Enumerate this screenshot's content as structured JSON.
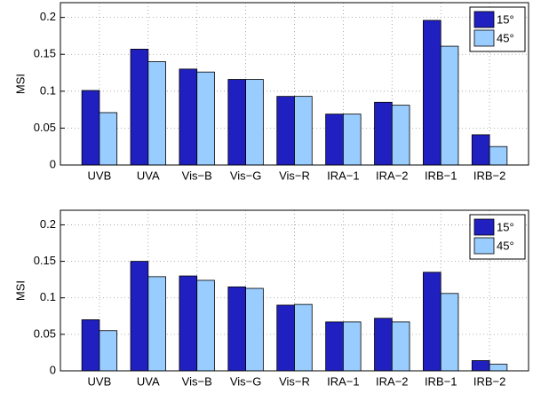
{
  "chart_data": [
    {
      "type": "bar",
      "y_label": "MSI",
      "categories": [
        "UVB",
        "UVA",
        "Vis−B",
        "Vis−G",
        "Vis−R",
        "IRA−1",
        "IRA−2",
        "IRB−1",
        "IRB−2"
      ],
      "series": [
        {
          "name": "15°",
          "color": "#2020c0",
          "values": [
            0.101,
            0.157,
            0.13,
            0.116,
            0.093,
            0.069,
            0.085,
            0.196,
            0.041
          ]
        },
        {
          "name": "45°",
          "color": "#99ccff",
          "values": [
            0.071,
            0.14,
            0.126,
            0.116,
            0.093,
            0.069,
            0.081,
            0.161,
            0.025
          ]
        }
      ],
      "ylim": [
        0,
        0.22
      ],
      "yticks": [
        0,
        0.05,
        0.1,
        0.15,
        0.2
      ],
      "grid": true,
      "legend": "upper right"
    },
    {
      "type": "bar",
      "y_label": "MSI",
      "categories": [
        "UVB",
        "UVA",
        "Vis−B",
        "Vis−G",
        "Vis−R",
        "IRA−1",
        "IRA−2",
        "IRB−1",
        "IRB−2"
      ],
      "series": [
        {
          "name": "15°",
          "color": "#2020c0",
          "values": [
            0.07,
            0.15,
            0.13,
            0.115,
            0.09,
            0.067,
            0.072,
            0.135,
            0.014
          ]
        },
        {
          "name": "45°",
          "color": "#99ccff",
          "values": [
            0.055,
            0.129,
            0.124,
            0.113,
            0.091,
            0.067,
            0.067,
            0.106,
            0.009
          ]
        }
      ],
      "ylim": [
        0,
        0.22
      ],
      "yticks": [
        0,
        0.05,
        0.1,
        0.15,
        0.2
      ],
      "grid": true,
      "legend": "upper right"
    }
  ]
}
